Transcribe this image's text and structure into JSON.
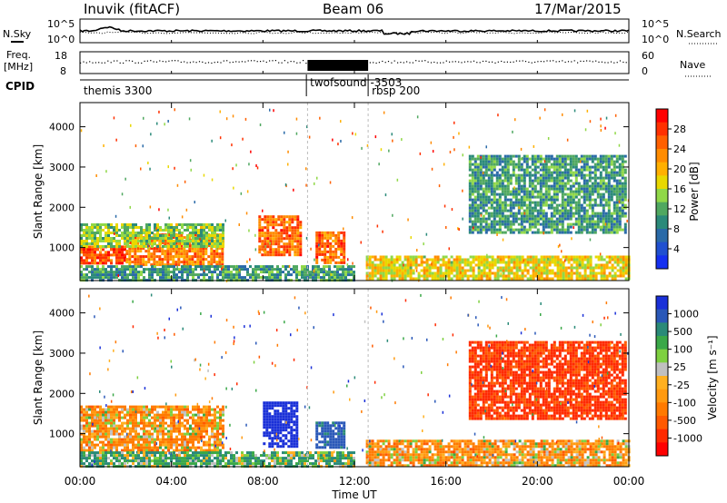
{
  "header": {
    "title": "Inuvik (fitACF)",
    "beam": "Beam 06",
    "date": "17/Mar/2015"
  },
  "nsky_panel": {
    "left_label": "N.Sky",
    "right_label": "N.Search",
    "left_ticks": [
      "10^5",
      "10^0"
    ],
    "right_ticks": [
      "10^5",
      "10^0"
    ]
  },
  "freq_panel": {
    "left_label_top": "Freq.",
    "left_label_unit": "[MHz]",
    "right_label": "Nave",
    "left_ticks": [
      "18",
      "8"
    ],
    "right_ticks": [
      "60",
      "0"
    ]
  },
  "cpid": {
    "label": "CPID",
    "modes": [
      {
        "name": "themis 3300",
        "start_hour": 0.0
      },
      {
        "name": "twofsound -3503",
        "start_hour": 9.9
      },
      {
        "name": "rbsp 200",
        "start_hour": 12.6
      }
    ]
  },
  "power_panel": {
    "ylabel": "Slant Range [km]",
    "yticks": [
      "4000",
      "3000",
      "2000",
      "1000"
    ],
    "colorbar_label": "Power [dB]",
    "colorbar_ticks": [
      "28",
      "24",
      "20",
      "16",
      "12",
      "8",
      "4"
    ],
    "colorbar_colors": [
      "#ff0000",
      "#ff3000",
      "#ff6000",
      "#ff8c00",
      "#ffb000",
      "#e8d800",
      "#90d848",
      "#50a860",
      "#2b8a7a",
      "#2a6aa8",
      "#2050d0",
      "#1530f0"
    ]
  },
  "velocity_panel": {
    "ylabel": "Slant Range [km]",
    "yticks": [
      "4000",
      "3000",
      "2000",
      "1000"
    ],
    "colorbar_label": "Velocity [m s⁻¹]",
    "colorbar_ticks": [
      "1000",
      "500",
      "100",
      "25",
      "-25",
      "-100",
      "-500",
      "-1000"
    ],
    "colorbar_colors": [
      "#1a30d8",
      "#2a58b8",
      "#2a8a78",
      "#3aa848",
      "#7ed040",
      "#c0c0c0",
      "#ffb020",
      "#ff9a10",
      "#ff7a00",
      "#ff5a00",
      "#ff2a00",
      "#ff0000"
    ]
  },
  "xaxis": {
    "label": "Time UT",
    "ticks": [
      "00:00",
      "04:00",
      "08:00",
      "12:00",
      "16:00",
      "20:00",
      "00:00"
    ]
  },
  "chart_data": [
    {
      "type": "heatmap",
      "title": "Power",
      "xlabel": "Time UT",
      "ylabel": "Slant Range [km]",
      "xlim": [
        0,
        24
      ],
      "ylim": [
        180,
        4600
      ],
      "zlabel": "Power [dB]",
      "zlim": [
        0,
        32
      ],
      "regions": [
        {
          "t": [
            0.0,
            2.0
          ],
          "r": [
            600,
            1050
          ],
          "z": 28
        },
        {
          "t": [
            2.0,
            6.2
          ],
          "r": [
            600,
            1350
          ],
          "z": 24
        },
        {
          "t": [
            0.0,
            6.2
          ],
          "r": [
            1050,
            1600
          ],
          "z": 14
        },
        {
          "t": [
            0.0,
            12.0
          ],
          "r": [
            200,
            560
          ],
          "z": 10
        },
        {
          "t": [
            7.8,
            9.6
          ],
          "r": [
            800,
            1800
          ],
          "z": 26
        },
        {
          "t": [
            10.3,
            11.5
          ],
          "r": [
            650,
            1400
          ],
          "z": 26
        },
        {
          "t": [
            12.5,
            24.0
          ],
          "r": [
            200,
            800
          ],
          "z": 18
        },
        {
          "t": [
            17.0,
            23.8
          ],
          "r": [
            1400,
            3300
          ],
          "z": 10
        }
      ]
    },
    {
      "type": "heatmap",
      "title": "Velocity",
      "xlabel": "Time UT",
      "ylabel": "Slant Range [km]",
      "xlim": [
        0,
        24
      ],
      "ylim": [
        180,
        4600
      ],
      "zlabel": "Velocity [m s-1]",
      "zlim": [
        -1000,
        1000
      ],
      "regions": [
        {
          "t": [
            0.0,
            6.2
          ],
          "r": [
            600,
            1700
          ],
          "z": -100
        },
        {
          "t": [
            0.0,
            12.0
          ],
          "r": [
            200,
            560
          ],
          "z": 100
        },
        {
          "t": [
            8.0,
            9.5
          ],
          "r": [
            700,
            1800
          ],
          "z": 1000
        },
        {
          "t": [
            10.3,
            11.5
          ],
          "r": [
            650,
            1300
          ],
          "z": 500
        },
        {
          "t": [
            12.5,
            24.0
          ],
          "r": [
            200,
            850
          ],
          "z": -100
        },
        {
          "t": [
            17.0,
            23.8
          ],
          "r": [
            1400,
            3300
          ],
          "z": -500
        }
      ]
    }
  ]
}
